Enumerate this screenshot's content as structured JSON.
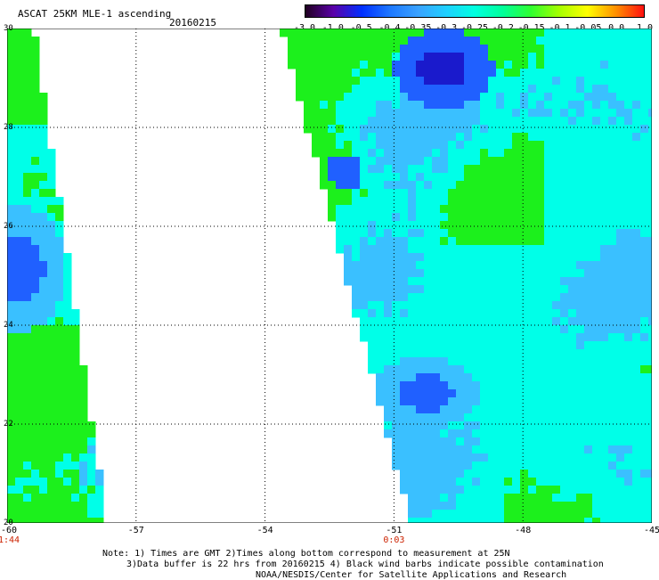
{
  "header": {
    "title": "ASCAT 25KM MLE-1 ascending",
    "date": "20160215"
  },
  "colorbar": {
    "labels": [
      "-3.0",
      "-1.0",
      "-0.5",
      "-0.4",
      "-0.35",
      "-0.3",
      "-0.25",
      "-0.2",
      "-0.15",
      "-0.1",
      "-0.05",
      "0.0",
      "1.0"
    ],
    "colors": [
      "#200020",
      "#5a00a8",
      "#0030ff",
      "#1e78ff",
      "#3aa2ff",
      "#1fd0ff",
      "#00ffe0",
      "#00ff9a",
      "#30ff30",
      "#a6ff00",
      "#ffff00",
      "#ff9000",
      "#ff1010"
    ]
  },
  "map": {
    "lon_labels": [
      "-60",
      "-57",
      "-54",
      "-51",
      "-48",
      "-45"
    ],
    "lat_labels": [
      "30",
      "28",
      "26",
      "24",
      "22",
      "20"
    ],
    "time_labels": [
      {
        "lon": "-60",
        "text": "1:44"
      },
      {
        "lon": "-51",
        "text": "0:03"
      }
    ],
    "swath_colors": {
      "land_bg": "#ffffff",
      "cyan": "#00ffe8",
      "green": "#1cf01c",
      "lightblue": "#3ac0ff",
      "blue": "#2060ff",
      "darkblue": "#1a1acc"
    }
  },
  "notes": {
    "line1": "Note: 1) Times are GMT 2)Times along bottom correspond to measurement at 25N",
    "line2": "3)Data buffer is 22 hrs from 20160215 4) Black wind barbs indicate possible contamination",
    "line3": "NOAA/NESDIS/Center for Satellite Applications and Research"
  }
}
